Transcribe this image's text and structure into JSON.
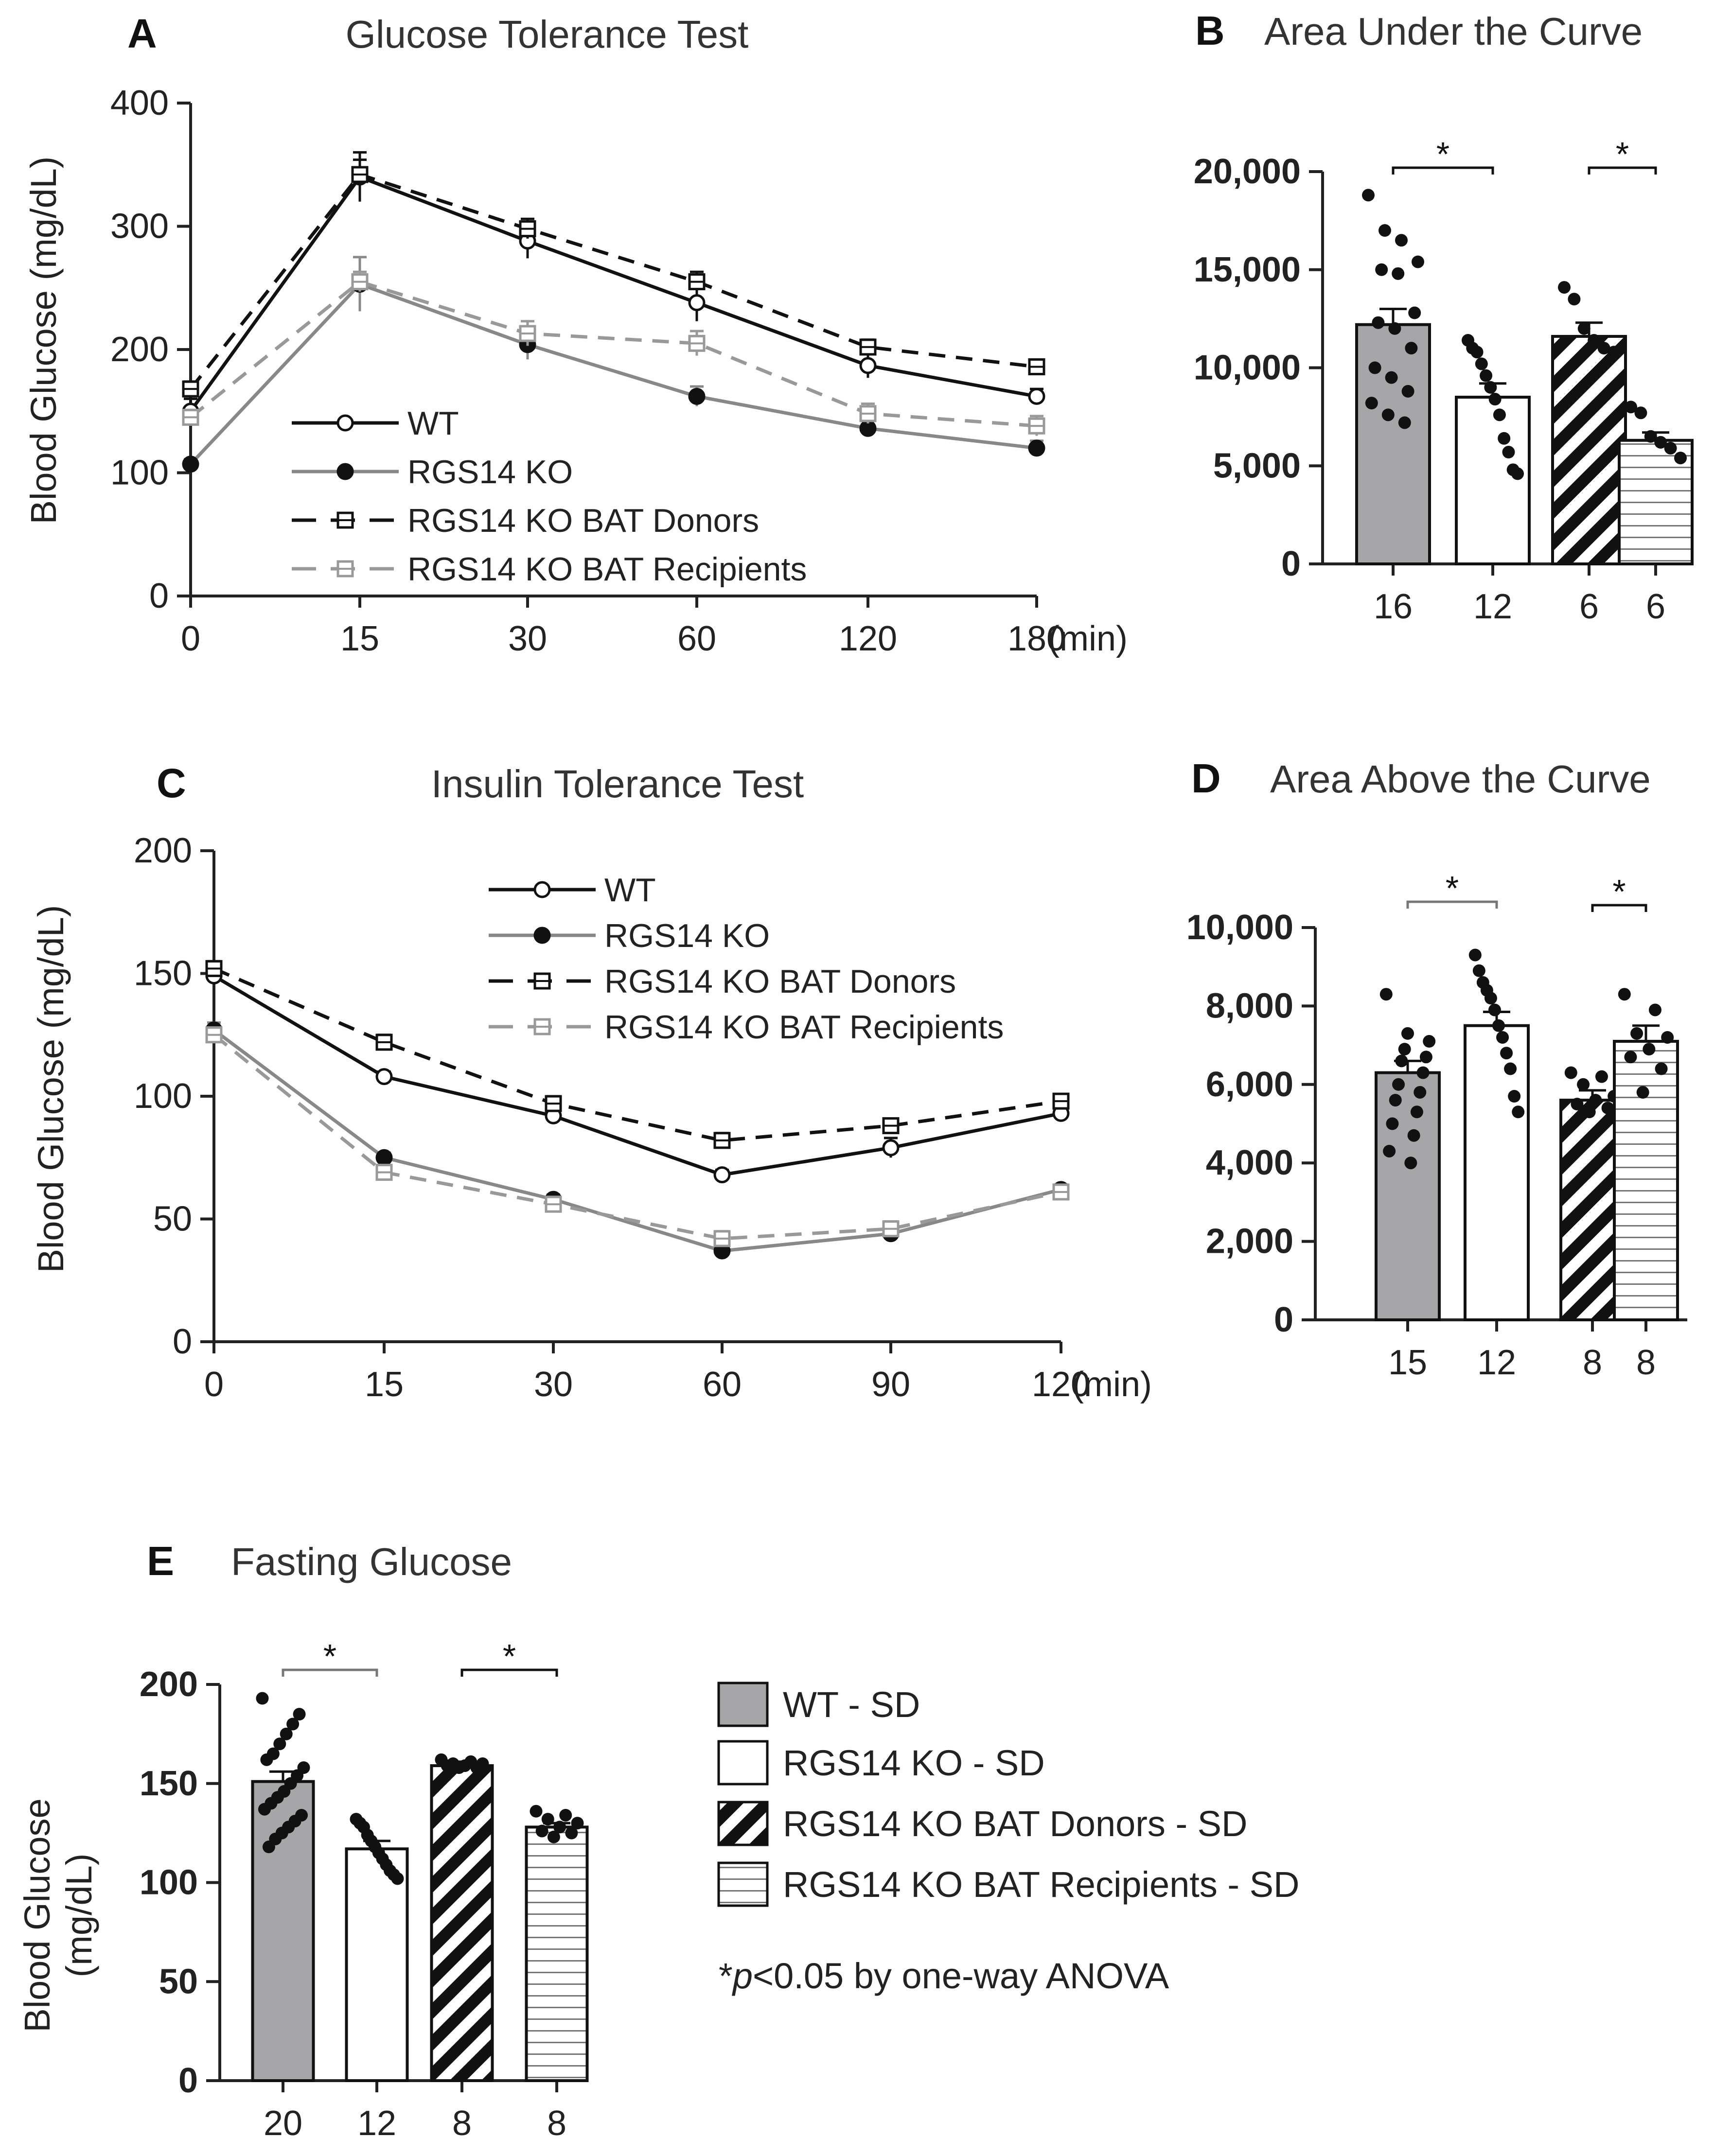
{
  "chart_data": [
    {
      "panel": "A",
      "type": "line",
      "title": "Glucose Tolerance Test",
      "xlabel": "(min)",
      "ylabel": "Blood Glucose (mg/dL)",
      "categories": [
        "0",
        "15",
        "30",
        "60",
        "120",
        "180"
      ],
      "ylim": [
        0,
        400
      ],
      "yticks": [
        "0",
        "100",
        "200",
        "300",
        "400"
      ],
      "series": [
        {
          "name": "WT",
          "key": "wt",
          "values": [
            150,
            340,
            288,
            238,
            187,
            162
          ],
          "errors": [
            10,
            20,
            14,
            15,
            10,
            6
          ]
        },
        {
          "name": "RGS14 KO",
          "key": "ko",
          "values": [
            107,
            253,
            204,
            162,
            136,
            120
          ],
          "errors": [
            4,
            22,
            12,
            8,
            6,
            6
          ]
        },
        {
          "name": "RGS14 KO BAT Donors",
          "key": "donor",
          "values": [
            168,
            342,
            298,
            255,
            202,
            186
          ],
          "errors": [
            6,
            12,
            8,
            8,
            6,
            4
          ]
        },
        {
          "name": "RGS14 KO BAT Recipients",
          "key": "recip",
          "values": [
            145,
            255,
            213,
            205,
            148,
            138
          ],
          "errors": [
            6,
            8,
            10,
            10,
            8,
            8
          ]
        }
      ]
    },
    {
      "panel": "B",
      "type": "bar",
      "title": "Area Under the Curve",
      "categories": [
        "16",
        "12",
        "6",
        "6"
      ],
      "values": [
        12200,
        8500,
        11600,
        6300
      ],
      "errors": [
        800,
        700,
        700,
        400
      ],
      "ylim": [
        0,
        20000
      ],
      "yticks": [
        "0",
        "5,000",
        "10,000",
        "15,000",
        "20,000"
      ],
      "points": [
        [
          18800,
          17000,
          16500,
          15400,
          15000,
          14800,
          12800,
          12300,
          12000,
          11000,
          10000,
          9500,
          8800,
          8200,
          7600,
          7200
        ],
        [
          11400,
          11000,
          10800,
          10200,
          9600,
          9000,
          8400,
          7600,
          6400,
          5700,
          4800,
          4600
        ],
        [
          14100,
          13500,
          12000,
          11400,
          11000,
          10800
        ],
        [
          8000,
          7700,
          6500,
          6200,
          5900,
          5400
        ]
      ],
      "significance": [
        "*",
        "*"
      ]
    },
    {
      "panel": "C",
      "type": "line",
      "title": "Insulin Tolerance Test",
      "xlabel": "(min)",
      "ylabel": "Blood Glucose (mg/dL)",
      "categories": [
        "0",
        "15",
        "30",
        "60",
        "90",
        "120"
      ],
      "ylim": [
        0,
        200
      ],
      "yticks": [
        "0",
        "50",
        "100",
        "150",
        "200"
      ],
      "series": [
        {
          "name": "WT",
          "key": "wt",
          "values": [
            149,
            108,
            92,
            68,
            79,
            93
          ],
          "errors": [
            3,
            2,
            3,
            2,
            4,
            3
          ]
        },
        {
          "name": "RGS14 KO",
          "key": "ko",
          "values": [
            127,
            75,
            58,
            37,
            44,
            62
          ],
          "errors": [
            3,
            2,
            2,
            3,
            3,
            2
          ]
        },
        {
          "name": "RGS14 KO BAT Donors",
          "key": "donor",
          "values": [
            152,
            122,
            97,
            82,
            88,
            98
          ],
          "errors": [
            3,
            3,
            3,
            3,
            2,
            2
          ]
        },
        {
          "name": "RGS14 KO BAT Recipients",
          "key": "recip",
          "values": [
            125,
            69,
            56,
            42,
            46,
            61
          ],
          "errors": [
            3,
            3,
            3,
            3,
            3,
            2
          ]
        }
      ]
    },
    {
      "panel": "D",
      "type": "bar",
      "title": "Area Above the Curve",
      "categories": [
        "15",
        "12",
        "8",
        "8"
      ],
      "values": [
        6300,
        7500,
        5600,
        7100
      ],
      "errors": [
        300,
        350,
        250,
        400
      ],
      "ylim": [
        0,
        10000
      ],
      "yticks": [
        "0",
        "2,000",
        "4,000",
        "6,000",
        "8,000",
        "10,000"
      ],
      "points": [
        [
          8300,
          7300,
          7100,
          6900,
          6700,
          6600,
          6300,
          6000,
          5800,
          5600,
          5300,
          5000,
          4700,
          4300,
          4000
        ],
        [
          9300,
          8900,
          8600,
          8400,
          8200,
          7900,
          7500,
          7200,
          6800,
          6400,
          5700,
          5300
        ],
        [
          6300,
          6200,
          6000,
          5700,
          5600,
          5500,
          5400,
          5300
        ],
        [
          8300,
          7900,
          7300,
          7200,
          6900,
          6700,
          6400,
          5800
        ]
      ],
      "significance": [
        "*",
        "*"
      ]
    },
    {
      "panel": "E",
      "type": "bar",
      "title": "Fasting Glucose",
      "ylabel_lines": [
        "Blood Glucose",
        "(mg/dL)"
      ],
      "categories": [
        "20",
        "12",
        "8",
        "8"
      ],
      "values": [
        151,
        117,
        159,
        128
      ],
      "errors": [
        5,
        4,
        2,
        2
      ],
      "ylim": [
        0,
        200
      ],
      "yticks": [
        "0",
        "50",
        "100",
        "150",
        "200"
      ],
      "points": [
        [
          193,
          185,
          180,
          175,
          170,
          165,
          162,
          158,
          154,
          150,
          146,
          143,
          140,
          137,
          134,
          131,
          128,
          125,
          122,
          118
        ],
        [
          132,
          130,
          128,
          124,
          121,
          118,
          115,
          112,
          109,
          106,
          104,
          102
        ],
        [
          162,
          161,
          160,
          160,
          159,
          159,
          158,
          158
        ],
        [
          136,
          134,
          132,
          130,
          128,
          126,
          125,
          123
        ]
      ],
      "significance": [
        "*",
        "*"
      ]
    }
  ],
  "bar_legend": [
    {
      "label": "WT - SD",
      "key": "wt"
    },
    {
      "label": "RGS14 KO - SD",
      "key": "ko"
    },
    {
      "label": "RGS14 KO BAT Donors - SD",
      "key": "donor"
    },
    {
      "label": "RGS14 KO BAT Recipients - SD",
      "key": "recip"
    }
  ],
  "stats_note_prefix": "*",
  "stats_note_italic": "p",
  "stats_note_rest": "<0.05 by one-way ANOVA"
}
